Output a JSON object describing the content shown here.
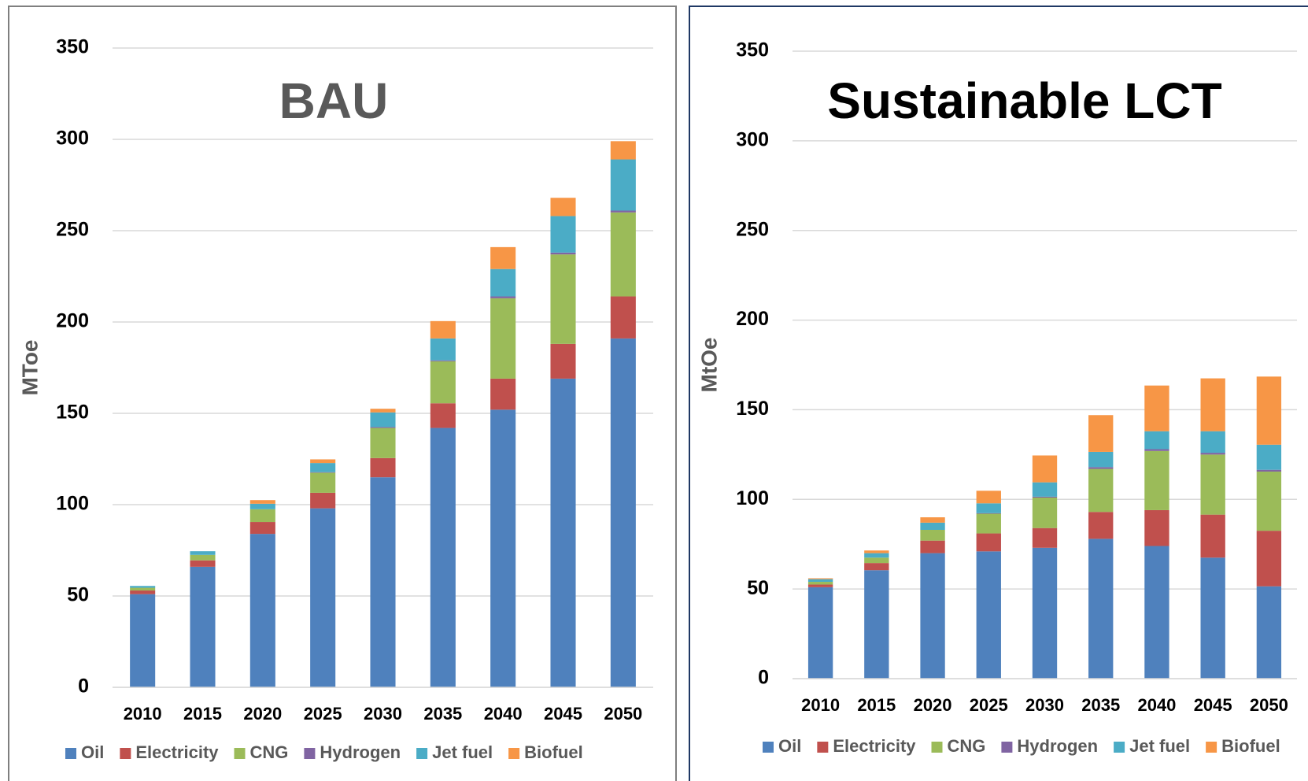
{
  "chart_data": [
    {
      "type": "bar",
      "stacked": true,
      "title": "BAU",
      "y_label": "MToe",
      "categories": [
        "2010",
        "2015",
        "2020",
        "2025",
        "2030",
        "2035",
        "2040",
        "2045",
        "2050"
      ],
      "series": [
        {
          "name": "Oil",
          "color": "#4f81bd",
          "values": [
            51,
            66,
            84,
            98,
            115,
            142,
            152,
            169,
            191
          ]
        },
        {
          "name": "Electricity",
          "color": "#c0504d",
          "values": [
            2,
            3.5,
            6.5,
            8.5,
            10.5,
            13.5,
            17,
            19,
            23
          ]
        },
        {
          "name": "CNG",
          "color": "#9bbb59",
          "values": [
            1.5,
            3,
            7,
            11,
            16.5,
            23,
            44,
            49,
            46
          ]
        },
        {
          "name": "Hydrogen",
          "color": "#8064a2",
          "values": [
            0,
            0,
            0,
            0.3,
            0.5,
            0.5,
            1,
            1,
            1
          ]
        },
        {
          "name": "Jet fuel",
          "color": "#4bacc6",
          "values": [
            1,
            2,
            3,
            5,
            8,
            12,
            15,
            20,
            28
          ]
        },
        {
          "name": "Biofuel",
          "color": "#f79646",
          "values": [
            0,
            0,
            2,
            2,
            2,
            9.5,
            12,
            10,
            10
          ]
        }
      ],
      "ylim": [
        0,
        350
      ],
      "yticks": [
        0,
        50,
        100,
        150,
        200,
        250,
        300,
        350
      ],
      "grid": true,
      "legend": "bottom"
    },
    {
      "type": "bar",
      "stacked": true,
      "title": "Sustainable LCT",
      "y_label": "MtOe",
      "categories": [
        "2010",
        "2015",
        "2020",
        "2025",
        "2030",
        "2035",
        "2040",
        "2045",
        "2050"
      ],
      "series": [
        {
          "name": "Oil",
          "color": "#4f81bd",
          "values": [
            51,
            60.5,
            70,
            71,
            73,
            78,
            74,
            67.5,
            51.5
          ]
        },
        {
          "name": "Electricity",
          "color": "#c0504d",
          "values": [
            1.5,
            4,
            7,
            10,
            11,
            15,
            20,
            24,
            31
          ]
        },
        {
          "name": "CNG",
          "color": "#9bbb59",
          "values": [
            1.5,
            3,
            6,
            11,
            17,
            24,
            33,
            33.5,
            33
          ]
        },
        {
          "name": "Hydrogen",
          "color": "#8064a2",
          "values": [
            0,
            0,
            0,
            0.3,
            0.5,
            1,
            1,
            1,
            1
          ]
        },
        {
          "name": "Jet fuel",
          "color": "#4bacc6",
          "values": [
            1.5,
            2.5,
            4,
            5.5,
            8,
            8.5,
            10,
            12,
            14
          ]
        },
        {
          "name": "Biofuel",
          "color": "#f79646",
          "values": [
            0.5,
            1.5,
            3,
            7,
            15,
            20.5,
            25.5,
            29.5,
            38
          ]
        }
      ],
      "ylim": [
        0,
        350
      ],
      "yticks": [
        0,
        50,
        100,
        150,
        200,
        250,
        300,
        350
      ],
      "grid": true,
      "legend": "bottom"
    }
  ]
}
